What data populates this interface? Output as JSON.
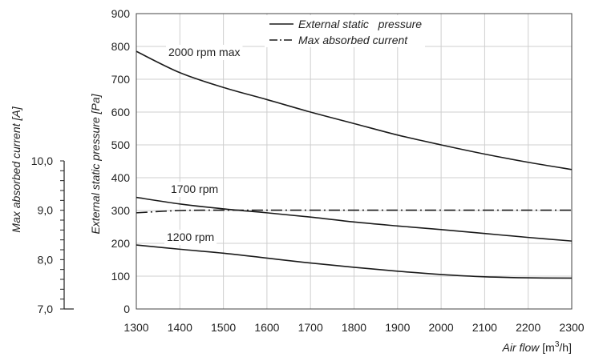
{
  "chart_data": {
    "type": "line",
    "x_axis": {
      "label": "Air flow",
      "unit_prefix": "[m",
      "unit_sup": "3",
      "unit_suffix": "/h]",
      "range": [
        1300,
        2300
      ],
      "ticks": [
        "1300",
        "1400",
        "1500",
        "1600",
        "1700",
        "1800",
        "1900",
        "2000",
        "2100",
        "2200",
        "2300"
      ]
    },
    "y_axis": {
      "label": "External static pressure [Pa]",
      "range": [
        0,
        900
      ],
      "ticks": [
        "0",
        "100",
        "200",
        "300",
        "400",
        "500",
        "600",
        "700",
        "800",
        "900"
      ]
    },
    "y2_axis": {
      "label": "Max absorbed current [A]",
      "range": [
        7.0,
        10.0
      ],
      "ticks": [
        "7,0",
        "8,0",
        "9,0",
        "10,0"
      ],
      "tick_values": [
        7.0,
        8.0,
        9.0,
        10.0
      ],
      "minor_step": 0.2
    },
    "legend": {
      "position": "top",
      "items": [
        {
          "label": "External static   pressure",
          "style": "solid"
        },
        {
          "label": "Max absorbed current",
          "style": "dash-dot"
        }
      ]
    },
    "grid": true,
    "series": [
      {
        "name": "2000 rpm max",
        "style": "solid",
        "axis": "y",
        "x": [
          1300,
          1400,
          1500,
          1600,
          1700,
          1800,
          1900,
          2000,
          2100,
          2200,
          2300
        ],
        "y": [
          785,
          720,
          675,
          638,
          600,
          565,
          530,
          500,
          472,
          447,
          425
        ]
      },
      {
        "name": "1700 rpm",
        "style": "solid",
        "axis": "y",
        "x": [
          1300,
          1400,
          1500,
          1600,
          1700,
          1800,
          1900,
          2000,
          2100,
          2200,
          2300
        ],
        "y": [
          340,
          320,
          305,
          293,
          280,
          265,
          253,
          242,
          230,
          218,
          207
        ]
      },
      {
        "name": "1200 rpm",
        "style": "solid",
        "axis": "y",
        "x": [
          1300,
          1400,
          1500,
          1600,
          1700,
          1800,
          1900,
          2000,
          2100,
          2200,
          2300
        ],
        "y": [
          195,
          182,
          170,
          155,
          140,
          127,
          115,
          105,
          98,
          95,
          94
        ]
      },
      {
        "name": "",
        "style": "dash-dot",
        "axis": "y",
        "x": [
          1300,
          1400,
          1500,
          1600,
          1700,
          1800,
          1900,
          2000,
          2100,
          2200,
          2300
        ],
        "y": [
          293,
          300,
          301,
          301,
          301,
          301,
          301,
          301,
          301,
          301,
          301
        ]
      }
    ]
  }
}
